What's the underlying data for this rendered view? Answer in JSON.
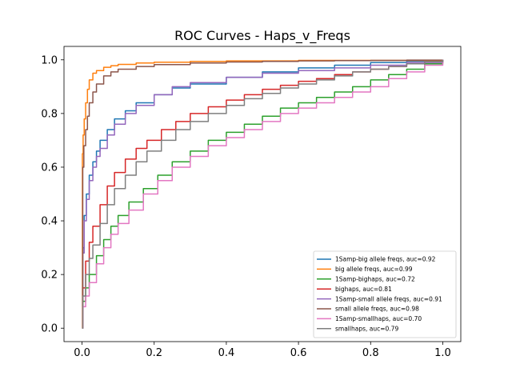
{
  "chart_data": {
    "type": "line",
    "title": "ROC Curves - Haps_v_Freqs",
    "xlabel": "",
    "ylabel": "",
    "xlim": [
      -0.05,
      1.05
    ],
    "ylim": [
      -0.05,
      1.05
    ],
    "x_ticks": [
      "0.0",
      "0.2",
      "0.4",
      "0.6",
      "0.8",
      "1.0"
    ],
    "y_ticks": [
      "0.0",
      "0.2",
      "0.4",
      "0.6",
      "0.8",
      "1.0"
    ],
    "grid": false,
    "legend_position": "lower-right",
    "series": [
      {
        "name": "1Samp-big allele freqs, auc=0.92",
        "color": "#1f77b4",
        "x": [
          0,
          0.002,
          0.006,
          0.012,
          0.02,
          0.03,
          0.04,
          0.05,
          0.07,
          0.09,
          0.12,
          0.15,
          0.2,
          0.25,
          0.3,
          0.4,
          0.5,
          0.6,
          0.7,
          0.8,
          0.9,
          1.0
        ],
        "y": [
          0,
          0.3,
          0.42,
          0.5,
          0.57,
          0.62,
          0.66,
          0.7,
          0.74,
          0.78,
          0.81,
          0.84,
          0.87,
          0.895,
          0.91,
          0.935,
          0.955,
          0.97,
          0.98,
          0.99,
          0.995,
          1.0
        ]
      },
      {
        "name": "big allele freqs, auc=0.99",
        "color": "#ff7f0e",
        "x": [
          0,
          0.001,
          0.003,
          0.006,
          0.01,
          0.015,
          0.02,
          0.03,
          0.04,
          0.06,
          0.08,
          0.1,
          0.15,
          0.2,
          0.3,
          0.4,
          0.6,
          1.0
        ],
        "y": [
          0,
          0.65,
          0.72,
          0.78,
          0.84,
          0.89,
          0.925,
          0.95,
          0.96,
          0.972,
          0.978,
          0.983,
          0.988,
          0.991,
          0.994,
          0.996,
          0.998,
          1.0
        ]
      },
      {
        "name": "1Samp-bighaps, auc=0.72",
        "color": "#2ca02c",
        "x": [
          0,
          0.002,
          0.01,
          0.02,
          0.04,
          0.06,
          0.08,
          0.1,
          0.13,
          0.17,
          0.21,
          0.25,
          0.3,
          0.35,
          0.4,
          0.45,
          0.5,
          0.55,
          0.6,
          0.65,
          0.7,
          0.75,
          0.8,
          0.85,
          0.9,
          0.95,
          1.0
        ],
        "y": [
          0,
          0.1,
          0.15,
          0.2,
          0.27,
          0.33,
          0.38,
          0.42,
          0.47,
          0.52,
          0.57,
          0.62,
          0.66,
          0.7,
          0.73,
          0.76,
          0.79,
          0.82,
          0.84,
          0.86,
          0.88,
          0.9,
          0.925,
          0.945,
          0.965,
          0.985,
          1.0
        ]
      },
      {
        "name": "bighaps, auc=0.81",
        "color": "#d62728",
        "x": [
          0,
          0.002,
          0.01,
          0.02,
          0.03,
          0.05,
          0.07,
          0.09,
          0.12,
          0.15,
          0.18,
          0.22,
          0.26,
          0.3,
          0.35,
          0.4,
          0.45,
          0.5,
          0.55,
          0.6,
          0.65,
          0.7,
          0.75,
          0.8,
          0.85,
          0.9,
          0.95,
          1.0
        ],
        "y": [
          0,
          0.15,
          0.25,
          0.32,
          0.38,
          0.46,
          0.53,
          0.58,
          0.63,
          0.67,
          0.7,
          0.74,
          0.77,
          0.8,
          0.825,
          0.85,
          0.87,
          0.89,
          0.905,
          0.92,
          0.93,
          0.945,
          0.955,
          0.965,
          0.975,
          0.985,
          0.993,
          1.0
        ]
      },
      {
        "name": "1Samp-small allele freqs, auc=0.91",
        "color": "#9467bd",
        "x": [
          0,
          0.002,
          0.006,
          0.012,
          0.02,
          0.03,
          0.04,
          0.05,
          0.07,
          0.09,
          0.12,
          0.15,
          0.2,
          0.25,
          0.3,
          0.4,
          0.5,
          0.6,
          0.7,
          0.8,
          0.9,
          1.0
        ],
        "y": [
          0,
          0.28,
          0.4,
          0.48,
          0.55,
          0.6,
          0.64,
          0.67,
          0.72,
          0.76,
          0.8,
          0.83,
          0.87,
          0.9,
          0.915,
          0.935,
          0.95,
          0.96,
          0.97,
          0.98,
          0.99,
          1.0
        ]
      },
      {
        "name": "small allele freqs, auc=0.98",
        "color": "#8c564b",
        "x": [
          0,
          0.002,
          0.005,
          0.01,
          0.015,
          0.02,
          0.03,
          0.04,
          0.06,
          0.08,
          0.1,
          0.15,
          0.2,
          0.3,
          0.4,
          0.5,
          0.6,
          0.7,
          0.8,
          0.9,
          1.0
        ],
        "y": [
          0,
          0.6,
          0.68,
          0.74,
          0.79,
          0.84,
          0.88,
          0.91,
          0.94,
          0.955,
          0.965,
          0.975,
          0.982,
          0.988,
          0.992,
          0.994,
          0.996,
          0.997,
          0.998,
          0.999,
          1.0
        ]
      },
      {
        "name": "1Samp-smallhaps, auc=0.70",
        "color": "#e377c2",
        "x": [
          0,
          0.002,
          0.01,
          0.02,
          0.04,
          0.06,
          0.08,
          0.1,
          0.13,
          0.17,
          0.21,
          0.25,
          0.3,
          0.35,
          0.4,
          0.45,
          0.5,
          0.55,
          0.6,
          0.65,
          0.7,
          0.75,
          0.8,
          0.85,
          0.9,
          0.95,
          1.0
        ],
        "y": [
          0,
          0.08,
          0.12,
          0.17,
          0.24,
          0.3,
          0.35,
          0.39,
          0.44,
          0.5,
          0.55,
          0.6,
          0.64,
          0.68,
          0.71,
          0.74,
          0.77,
          0.8,
          0.82,
          0.84,
          0.86,
          0.88,
          0.9,
          0.93,
          0.955,
          0.98,
          1.0
        ]
      },
      {
        "name": "smallhaps, auc=0.79",
        "color": "#7f7f7f",
        "x": [
          0,
          0.002,
          0.01,
          0.02,
          0.03,
          0.05,
          0.07,
          0.09,
          0.12,
          0.15,
          0.18,
          0.22,
          0.26,
          0.3,
          0.35,
          0.4,
          0.45,
          0.5,
          0.55,
          0.6,
          0.65,
          0.7,
          0.75,
          0.8,
          0.85,
          0.9,
          0.95,
          1.0
        ],
        "y": [
          0,
          0.12,
          0.2,
          0.26,
          0.31,
          0.39,
          0.46,
          0.52,
          0.57,
          0.62,
          0.66,
          0.7,
          0.74,
          0.77,
          0.8,
          0.83,
          0.855,
          0.875,
          0.895,
          0.91,
          0.925,
          0.94,
          0.955,
          0.965,
          0.975,
          0.985,
          0.993,
          1.0
        ]
      }
    ]
  }
}
